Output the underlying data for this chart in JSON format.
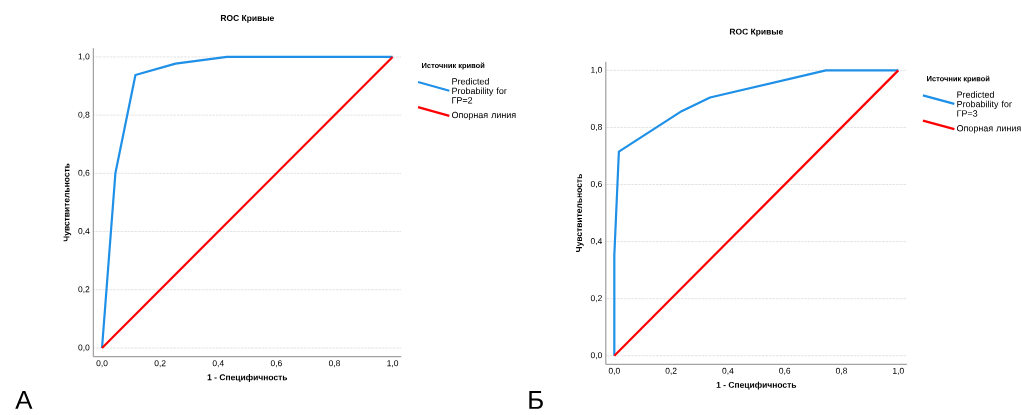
{
  "chart_data": [
    {
      "type": "line",
      "title": "ROC Кривые",
      "xlabel": "1 - Специфичность",
      "ylabel": "Чувствительность",
      "legend_title": "Источник кривой",
      "annotations": [
        "А"
      ],
      "series": [
        {
          "name": "Predicted Probability for ГР=2",
          "color": "#1e90e8",
          "x": [
            0,
            0.046,
            0.115,
            0.253,
            0.43,
            1
          ],
          "values": [
            0,
            0.6,
            0.938,
            0.977,
            1,
            1
          ]
        },
        {
          "name": "Опорная линия",
          "color": "#ff0000",
          "x": [
            0,
            1
          ],
          "values": [
            0,
            1
          ]
        }
      ],
      "xlim": [
        -0.03,
        1.03
      ],
      "ylim": [
        -0.03,
        1.03
      ],
      "xticks": [
        {
          "value": 0,
          "label": "0,0"
        },
        {
          "value": 0.2,
          "label": "0,2"
        },
        {
          "value": 0.4,
          "label": "0,4"
        },
        {
          "value": 0.6,
          "label": "0,6"
        },
        {
          "value": 0.8,
          "label": "0,8"
        },
        {
          "value": 1,
          "label": "1,0"
        }
      ],
      "yticks": [
        {
          "value": 0,
          "label": "0,0"
        },
        {
          "value": 0.2,
          "label": "0,2"
        },
        {
          "value": 0.4,
          "label": "0,4"
        },
        {
          "value": 0.6,
          "label": "0,6"
        },
        {
          "value": 0.8,
          "label": "0,8"
        },
        {
          "value": 1,
          "label": "1,0"
        }
      ],
      "grid": "y",
      "legend": "right"
    },
    {
      "type": "line",
      "title": "ROC Кривые",
      "xlabel": "1 - Специфичность",
      "ylabel": "Чувствительность",
      "legend_title": "Источник кривой",
      "annotations": [
        "Б"
      ],
      "series": [
        {
          "name": "Predicted Probability for ГР=3",
          "color": "#1e90e8",
          "x": [
            0,
            0,
            0.016,
            0.237,
            0.337,
            0.745,
            1
          ],
          "values": [
            0,
            0.353,
            0.715,
            0.857,
            0.905,
            1,
            1
          ]
        },
        {
          "name": "Опорная линия",
          "color": "#ff0000",
          "x": [
            0,
            1
          ],
          "values": [
            0,
            1
          ]
        }
      ],
      "xlim": [
        -0.03,
        1.03
      ],
      "ylim": [
        -0.03,
        1.03
      ],
      "xticks": [
        {
          "value": 0,
          "label": "0,0"
        },
        {
          "value": 0.2,
          "label": "0,2"
        },
        {
          "value": 0.4,
          "label": "0,4"
        },
        {
          "value": 0.6,
          "label": "0,6"
        },
        {
          "value": 0.8,
          "label": "0,8"
        },
        {
          "value": 1,
          "label": "1,0"
        }
      ],
      "yticks": [
        {
          "value": 0,
          "label": "0,0"
        },
        {
          "value": 0.2,
          "label": "0,2"
        },
        {
          "value": 0.4,
          "label": "0,4"
        },
        {
          "value": 0.6,
          "label": "0,6"
        },
        {
          "value": 0.8,
          "label": "0,8"
        },
        {
          "value": 1,
          "label": "1,0"
        }
      ],
      "grid": "y",
      "legend": "right"
    }
  ]
}
